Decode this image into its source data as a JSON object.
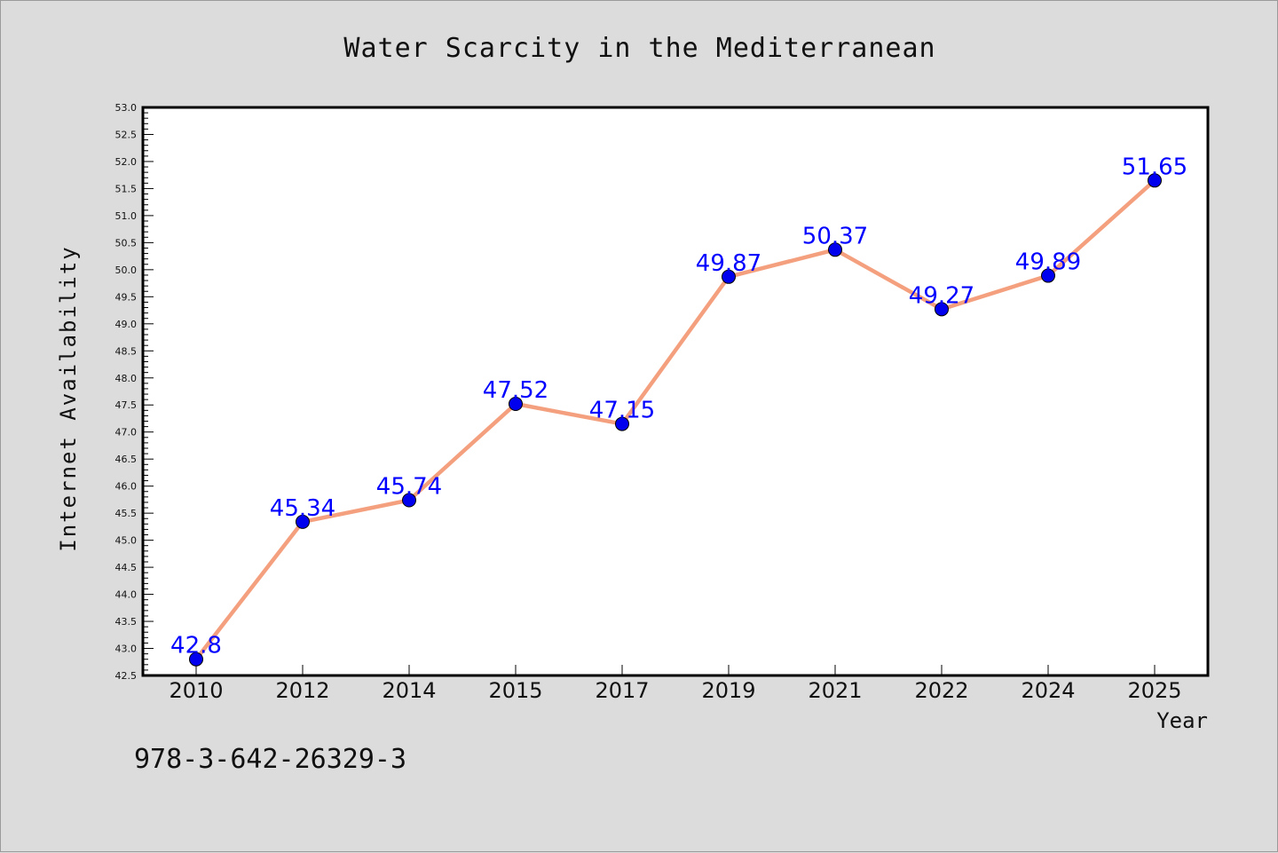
{
  "chart_data": {
    "type": "line",
    "title": "Water Scarcity in the Mediterranean",
    "xlabel": "Year",
    "ylabel": "Internet Availability",
    "categories": [
      "2010",
      "2012",
      "2014",
      "2015",
      "2017",
      "2019",
      "2021",
      "2022",
      "2024",
      "2025"
    ],
    "series": [
      {
        "values": [
          42.8,
          45.34,
          45.74,
          47.52,
          47.15,
          49.87,
          50.37,
          49.27,
          49.89,
          51.65
        ],
        "labels": [
          "42.8",
          "45.34",
          "45.74",
          "47.52",
          "47.15",
          "49.87",
          "50.37",
          "49.27",
          "49.89",
          "51.65"
        ],
        "line_color": "#f4a07e",
        "marker_color": "#0000ee",
        "label_color": "#0000ff"
      }
    ],
    "ylim": [
      42.5,
      53.0
    ],
    "yticks": [
      "42.5",
      "43.0",
      "43.5",
      "44.0",
      "44.5",
      "45.0",
      "45.5",
      "46.0",
      "46.5",
      "47.0",
      "47.5",
      "48.0",
      "48.5",
      "49.0",
      "49.5",
      "50.0",
      "50.5",
      "51.0",
      "51.5",
      "52.0",
      "52.5",
      "53.0"
    ],
    "grid": false,
    "legend": "none"
  },
  "annotation": "978-3-642-26329-3"
}
